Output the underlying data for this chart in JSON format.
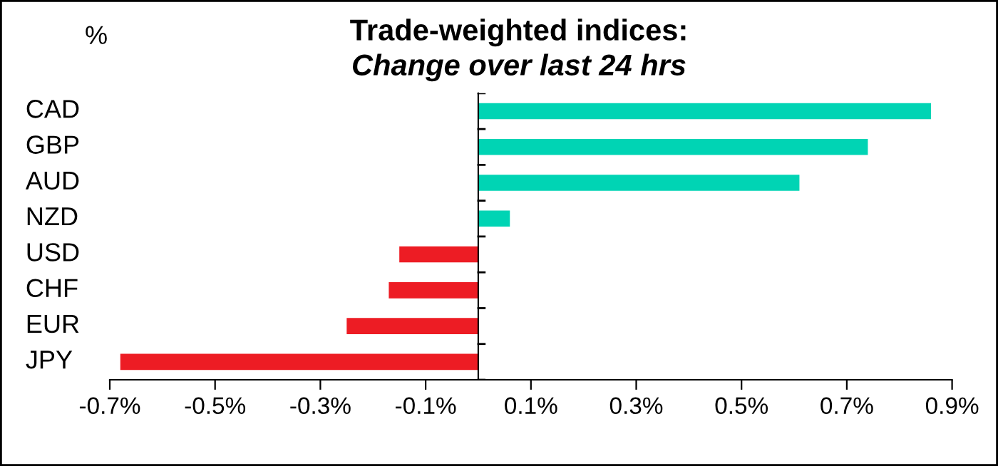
{
  "chart_data": {
    "type": "bar",
    "orientation": "horizontal",
    "title": "Trade-weighted indices:",
    "subtitle": "Change over last 24 hrs",
    "ylabel": "%",
    "categories": [
      "CAD",
      "GBP",
      "AUD",
      "NZD",
      "USD",
      "CHF",
      "EUR",
      "JPY"
    ],
    "values": [
      0.86,
      0.74,
      0.61,
      0.06,
      -0.15,
      -0.17,
      -0.25,
      -0.68
    ],
    "colors": [
      "#00d4b4",
      "#00d4b4",
      "#00d4b4",
      "#00d4b4",
      "#ed1c24",
      "#ed1c24",
      "#ed1c24",
      "#ed1c24"
    ],
    "xlim": [
      -0.7,
      0.9
    ],
    "xticks": [
      {
        "value": -0.7,
        "label": "-0.7%"
      },
      {
        "value": -0.5,
        "label": "-0.5%"
      },
      {
        "value": -0.3,
        "label": "-0.3%"
      },
      {
        "value": -0.1,
        "label": "-0.1%"
      },
      {
        "value": 0.1,
        "label": "0.1%"
      },
      {
        "value": 0.3,
        "label": "0.3%"
      },
      {
        "value": 0.5,
        "label": "0.5%"
      },
      {
        "value": 0.7,
        "label": "0.7%"
      },
      {
        "value": 0.9,
        "label": "0.9%"
      }
    ],
    "grid": false,
    "legend": false
  }
}
